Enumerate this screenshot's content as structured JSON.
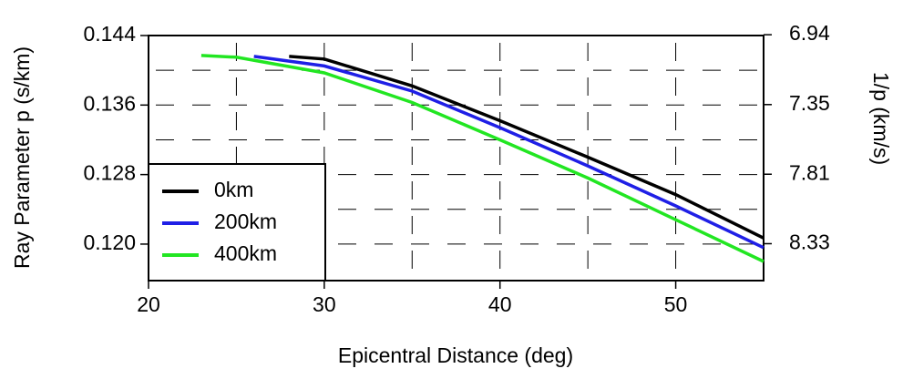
{
  "chart_data": {
    "type": "line",
    "x_label": "Epicentral Distance (deg)",
    "y_label": "Ray Parameter p (s/km)",
    "y2_label": "1/p (km/s)",
    "xlim": [
      20,
      55
    ],
    "xticks": [
      20,
      30,
      40,
      50
    ],
    "ylim": [
      0.1158,
      0.144
    ],
    "yticks": [
      0.144,
      {
        "value": 0.136,
        "label": "0.136"
      },
      0.128,
      {
        "value": 0.12,
        "label": "0.120"
      }
    ],
    "y2scale": "reciprocal",
    "y2ticks": [
      6.94,
      7.35,
      7.81,
      8.33
    ],
    "grid": true,
    "grid_x": [
      25,
      30,
      35,
      40,
      45,
      50
    ],
    "grid_y": [
      0.14,
      0.136,
      0.132,
      0.128,
      0.124,
      0.12
    ],
    "legend_position": "lower left",
    "series": [
      {
        "name": "0km",
        "color": "#000000",
        "x": [
          28,
          30,
          35,
          40,
          45,
          50,
          55
        ],
        "values": [
          0.1416,
          0.1413,
          0.1382,
          0.1342,
          0.13,
          0.1257,
          0.1207
        ]
      },
      {
        "name": "200km",
        "color": "#1f1fe6",
        "x": [
          26,
          30,
          35,
          40,
          45,
          50,
          55
        ],
        "values": [
          0.1416,
          0.1405,
          0.1376,
          0.1334,
          0.129,
          0.1244,
          0.1196
        ]
      },
      {
        "name": "400km",
        "color": "#22e622",
        "x": [
          23,
          25,
          30,
          35,
          40,
          45,
          50,
          55
        ],
        "values": [
          0.1417,
          0.1415,
          0.1397,
          0.1363,
          0.132,
          0.1276,
          0.1228,
          0.118
        ]
      }
    ]
  }
}
